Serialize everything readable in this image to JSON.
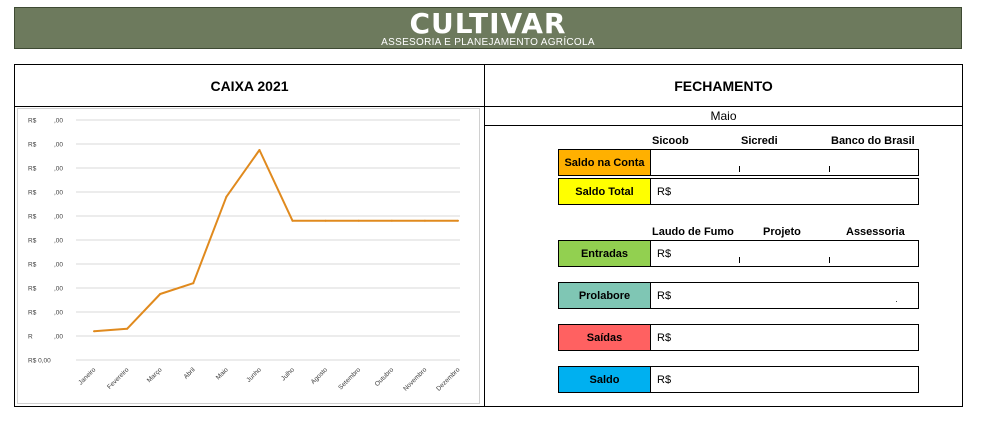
{
  "header": {
    "brand": "CULTIVAR",
    "tagline": "ASSESORIA E PLANEJAMENTO AGRÍCOLA",
    "bg_color": "#6d7a5d"
  },
  "caixa": {
    "title": "CAIXA 2021",
    "chart_data": {
      "type": "line",
      "title": "",
      "categories": [
        "Janeiro",
        "Fevereiro",
        "Março",
        "Abril",
        "Maio",
        "Junho",
        "Julho",
        "Agosto",
        "Setembro",
        "Outubro",
        "Novembro",
        "Dezembro"
      ],
      "series": [
        {
          "values": [
            1.2,
            1.3,
            2.75,
            3.2,
            6.8,
            8.75,
            5.8,
            5.8,
            5.8,
            5.8,
            5.8,
            5.8
          ],
          "color": "#e08a1e"
        }
      ],
      "ylim": [
        0,
        10
      ],
      "y_tick_labels": [
        "R$ 0,00",
        "R",
        "R$",
        "R$",
        "R$",
        "R$",
        "R$",
        "R$",
        "R$",
        "R$",
        "R$"
      ],
      "y_tick_suffix": [
        "",
        ",00",
        ",00",
        ",00",
        ",00",
        ",00",
        ",00",
        ",00",
        ",00",
        ",00",
        ",00"
      ],
      "grid": true
    }
  },
  "fechamento": {
    "title": "FECHAMENTO",
    "month": "Maio",
    "bank_headers": [
      "Sicoob",
      "Sicredi",
      "Banco do Brasil"
    ],
    "saldo_conta": {
      "label": "Saldo na Conta",
      "color": "#ffb000"
    },
    "saldo_total": {
      "label": "Saldo Total",
      "value": "R$",
      "color": "#ffff00"
    },
    "entry_headers": [
      "Laudo de Fumo",
      "Projeto",
      "Assessoria"
    ],
    "entradas": {
      "label": "Entradas",
      "value": "R$",
      "color": "#92d050"
    },
    "prolabore": {
      "label": "Prolabore",
      "value": "R$",
      "color": "#7fc6b4"
    },
    "saidas": {
      "label": "Saídas",
      "value": "R$",
      "color": "#ff6161"
    },
    "saldo": {
      "label": "Saldo",
      "value": "R$",
      "color": "#00b0f0"
    }
  }
}
